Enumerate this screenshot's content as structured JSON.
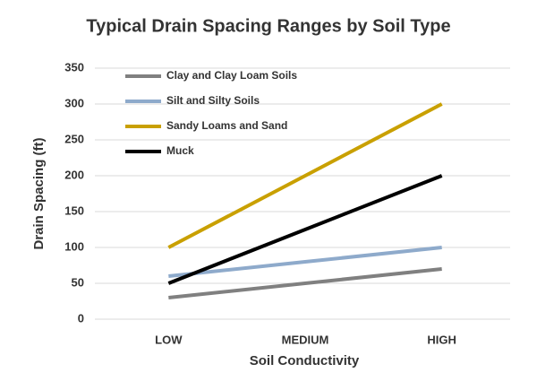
{
  "chart_data": {
    "type": "line",
    "title": "Typical Drain Spacing Ranges by Soil Type",
    "x_label": "Soil Conductivity",
    "y_label": "Drain Spacing (ft)",
    "categories": [
      "LOW",
      "MEDIUM",
      "HIGH"
    ],
    "series": [
      {
        "name": "Clay and Clay Loam Soils",
        "color": "#808080",
        "values": [
          30,
          50,
          70
        ]
      },
      {
        "name": "Silt and Silty Soils",
        "color": "#8eaacb",
        "values": [
          60,
          80,
          100
        ]
      },
      {
        "name": "Sandy Loams and Sand",
        "color": "#c9a000",
        "values": [
          100,
          200,
          300
        ]
      },
      {
        "name": "Muck",
        "color": "#000000",
        "values": [
          50,
          125,
          200
        ]
      }
    ],
    "ylim": [
      0,
      350
    ],
    "yticks": [
      0,
      50,
      100,
      150,
      200,
      250,
      300,
      350
    ],
    "grid": true,
    "legend": "upper-left"
  }
}
